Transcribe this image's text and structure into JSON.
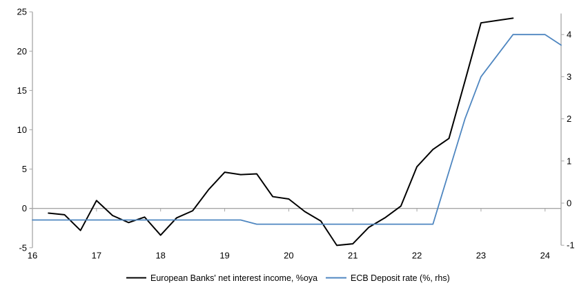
{
  "chart_data": {
    "type": "line",
    "title": "",
    "x_axis": {
      "tick_labels": [
        "16",
        "17",
        "18",
        "19",
        "20",
        "21",
        "22",
        "23",
        "24"
      ],
      "tick_years": [
        16,
        17,
        18,
        19,
        20,
        21,
        22,
        23,
        24
      ],
      "range": [
        16,
        24.33
      ],
      "grid": false
    },
    "left_axis": {
      "ticks": [
        -5,
        0,
        5,
        10,
        15,
        20,
        25
      ],
      "range": [
        -5,
        25
      ],
      "series": "European Banks' net interest income, %oya"
    },
    "right_axis": {
      "ticks": [
        -1,
        0,
        1,
        2,
        3,
        4
      ],
      "range": [
        -1,
        4.5
      ],
      "series": "ECB Deposit rate (%, rhs)"
    },
    "series": [
      {
        "name": "European Banks' net interest income, %oya",
        "axis": "left",
        "color": "#000000",
        "stroke_width": 2,
        "x": [
          16.25,
          16.5,
          16.75,
          17.0,
          17.25,
          17.5,
          17.75,
          18.0,
          18.25,
          18.5,
          18.75,
          19.0,
          19.25,
          19.5,
          19.75,
          20.0,
          20.25,
          20.5,
          20.75,
          21.0,
          21.25,
          21.5,
          21.75,
          22.0,
          22.25,
          22.5,
          22.75,
          23.0,
          23.25,
          23.5
        ],
        "values": [
          -0.6,
          -0.8,
          -2.8,
          1.0,
          -0.9,
          -1.8,
          -1.1,
          -3.4,
          -1.2,
          -0.3,
          2.4,
          4.6,
          4.3,
          4.4,
          1.5,
          1.2,
          -0.4,
          -1.6,
          -4.7,
          -4.5,
          -2.4,
          -1.2,
          0.3,
          5.3,
          7.5,
          8.9,
          16.2,
          23.6,
          23.9,
          24.2
        ]
      },
      {
        "name": "ECB Deposit rate (%, rhs)",
        "axis": "right",
        "color": "#4e86c0",
        "stroke_width": 1.8,
        "x": [
          16.0,
          16.25,
          16.5,
          16.75,
          17.0,
          17.25,
          17.5,
          17.75,
          18.0,
          18.25,
          18.5,
          18.75,
          19.0,
          19.25,
          19.5,
          19.75,
          20.0,
          20.25,
          20.5,
          20.75,
          21.0,
          21.25,
          21.5,
          21.75,
          22.0,
          22.25,
          22.5,
          22.75,
          23.0,
          23.25,
          23.5,
          23.75,
          24.0,
          24.25
        ],
        "values": [
          -0.4,
          -0.4,
          -0.4,
          -0.4,
          -0.4,
          -0.4,
          -0.4,
          -0.4,
          -0.4,
          -0.4,
          -0.4,
          -0.4,
          -0.4,
          -0.4,
          -0.5,
          -0.5,
          -0.5,
          -0.5,
          -0.5,
          -0.5,
          -0.5,
          -0.5,
          -0.5,
          -0.5,
          -0.5,
          -0.5,
          0.75,
          2.0,
          3.0,
          3.5,
          4.0,
          4.0,
          4.0,
          3.75
        ]
      }
    ],
    "legend": {
      "position": "bottom-center",
      "items": [
        {
          "label": "European Banks' net interest income, %oya",
          "color": "#000000"
        },
        {
          "label": "ECB Deposit rate (%, rhs)",
          "color": "#4e86c0"
        }
      ]
    },
    "colors": {
      "axis_line": "#a6a6a6",
      "zero_line": "#a6a6a6",
      "text": "#000000"
    }
  }
}
